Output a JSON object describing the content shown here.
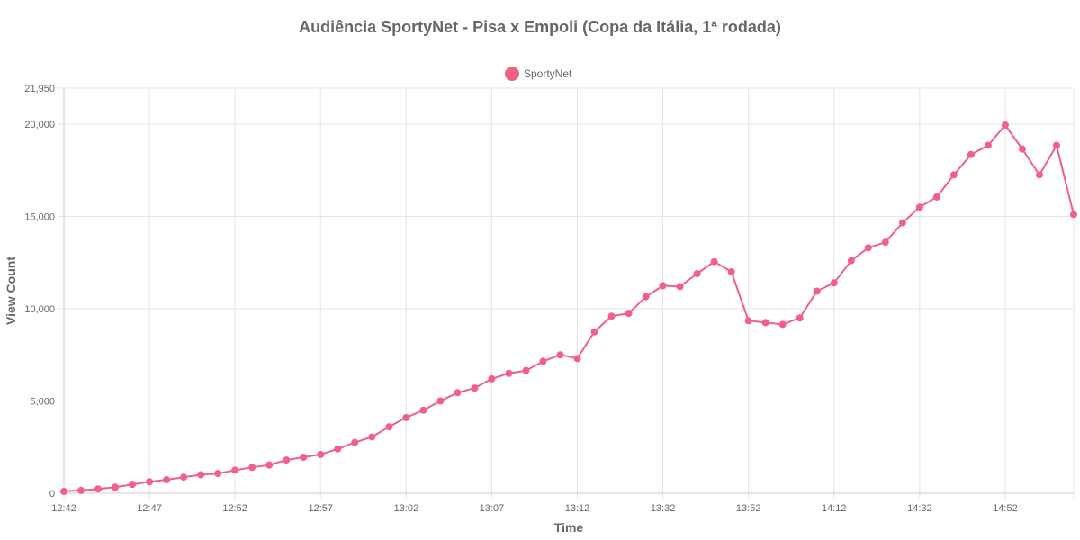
{
  "chart_data": {
    "type": "line",
    "title": "Audiência SportyNet - Pisa x Empoli (Copa da Itália, 1ª rodada)",
    "xlabel": "Time",
    "ylabel": "View Count",
    "ylim": [
      0,
      21950
    ],
    "y_ticks": [
      "0",
      "5,000",
      "10,000",
      "15,000",
      "20,000",
      "21,950"
    ],
    "y_tick_values": [
      0,
      5000,
      10000,
      15000,
      20000,
      21950
    ],
    "x_ticks": [
      "12:42",
      "12:47",
      "12:52",
      "12:57",
      "13:02",
      "13:07",
      "13:12",
      "13:32",
      "13:52",
      "14:12",
      "14:32",
      "14:52"
    ],
    "grid": true,
    "legend_position": "top-center",
    "series": [
      {
        "name": "SportyNet",
        "color": "#f06088",
        "values": [
          100,
          150,
          230,
          330,
          480,
          620,
          730,
          870,
          1000,
          1070,
          1250,
          1400,
          1530,
          1800,
          1950,
          2100,
          2400,
          2750,
          3050,
          3600,
          4100,
          4500,
          5000,
          5450,
          5700,
          6200,
          6500,
          6650,
          7150,
          7500,
          7300,
          8750,
          9600,
          9750,
          10650,
          11250,
          11200,
          11900,
          12550,
          12000,
          9350,
          9250,
          9150,
          9500,
          10950,
          11400,
          12600,
          13300,
          13600,
          14650,
          15500,
          16050,
          17250,
          18350,
          18850,
          19950,
          18650,
          17250,
          18850,
          15100
        ]
      }
    ]
  }
}
